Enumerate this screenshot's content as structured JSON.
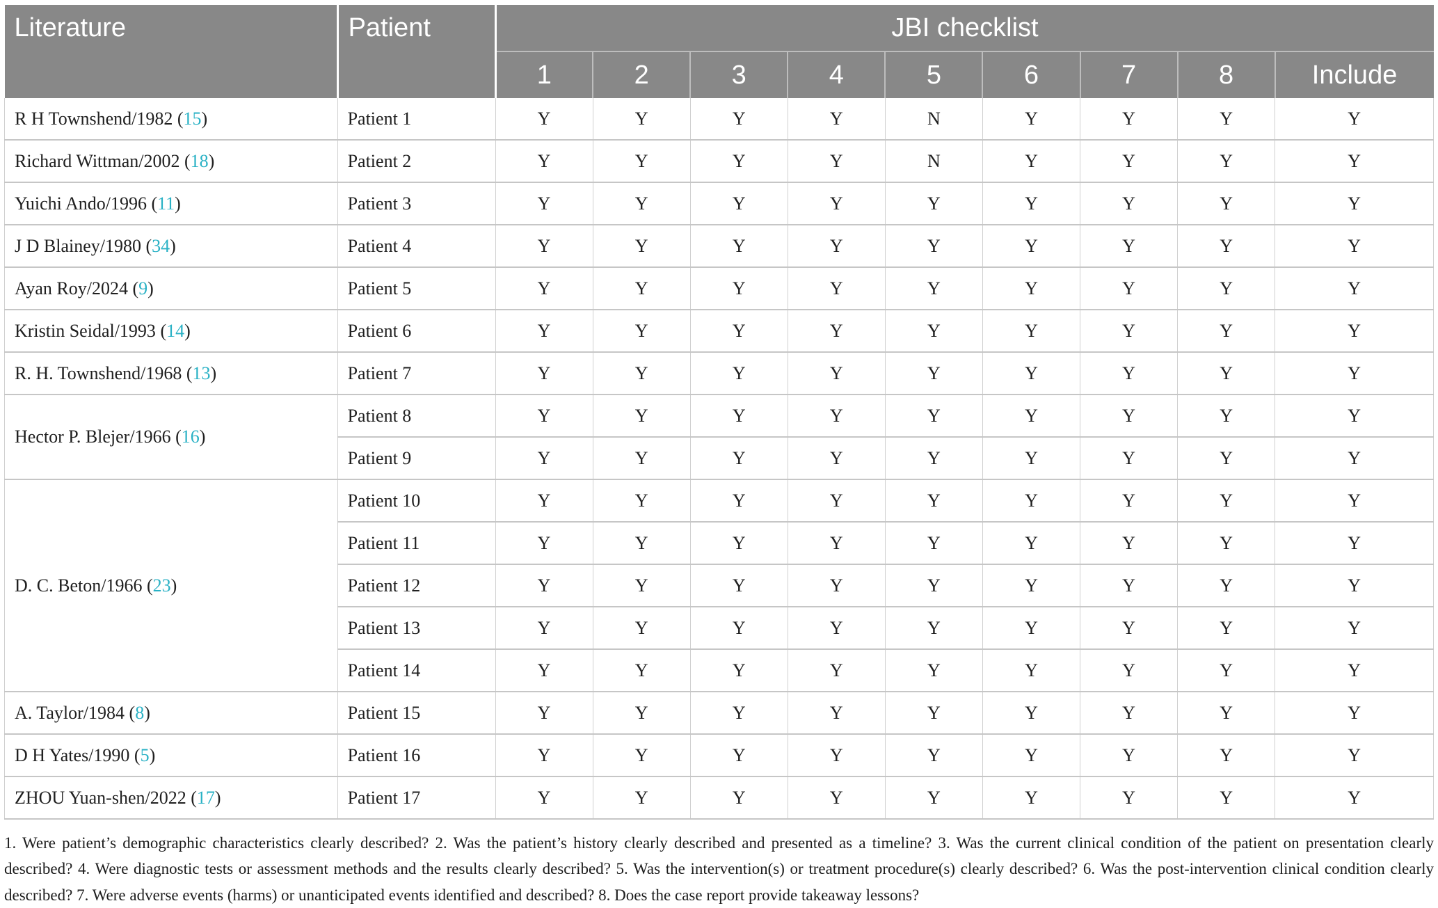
{
  "table": {
    "header": {
      "literature": "Literature",
      "patient": "Patient",
      "jbi": "JBI checklist",
      "sub_columns": [
        "1",
        "2",
        "3",
        "4",
        "5",
        "6",
        "7",
        "8",
        "Include"
      ]
    },
    "groups": [
      {
        "literature": "R H Townshend/1982",
        "ref": "15",
        "patients": [
          {
            "label": "Patient 1",
            "checks": [
              "Y",
              "Y",
              "Y",
              "Y",
              "N",
              "Y",
              "Y",
              "Y"
            ],
            "include": "Y"
          }
        ]
      },
      {
        "literature": "Richard Wittman/2002",
        "ref": "18",
        "patients": [
          {
            "label": "Patient 2",
            "checks": [
              "Y",
              "Y",
              "Y",
              "Y",
              "N",
              "Y",
              "Y",
              "Y"
            ],
            "include": "Y"
          }
        ]
      },
      {
        "literature": "Yuichi Ando/1996",
        "ref": "11",
        "patients": [
          {
            "label": "Patient 3",
            "checks": [
              "Y",
              "Y",
              "Y",
              "Y",
              "Y",
              "Y",
              "Y",
              "Y"
            ],
            "include": "Y"
          }
        ]
      },
      {
        "literature": "J D Blainey/1980",
        "ref": "34",
        "patients": [
          {
            "label": "Patient 4",
            "checks": [
              "Y",
              "Y",
              "Y",
              "Y",
              "Y",
              "Y",
              "Y",
              "Y"
            ],
            "include": "Y"
          }
        ]
      },
      {
        "literature": "Ayan Roy/2024",
        "ref": "9",
        "patients": [
          {
            "label": "Patient 5",
            "checks": [
              "Y",
              "Y",
              "Y",
              "Y",
              "Y",
              "Y",
              "Y",
              "Y"
            ],
            "include": "Y"
          }
        ]
      },
      {
        "literature": "Kristin Seidal/1993",
        "ref": "14",
        "patients": [
          {
            "label": "Patient 6",
            "checks": [
              "Y",
              "Y",
              "Y",
              "Y",
              "Y",
              "Y",
              "Y",
              "Y"
            ],
            "include": "Y"
          }
        ]
      },
      {
        "literature": "R. H. Townshend/1968",
        "ref": "13",
        "patients": [
          {
            "label": "Patient 7",
            "checks": [
              "Y",
              "Y",
              "Y",
              "Y",
              "Y",
              "Y",
              "Y",
              "Y"
            ],
            "include": "Y"
          }
        ]
      },
      {
        "literature": "Hector P. Blejer/1966",
        "ref": "16",
        "patients": [
          {
            "label": "Patient 8",
            "checks": [
              "Y",
              "Y",
              "Y",
              "Y",
              "Y",
              "Y",
              "Y",
              "Y"
            ],
            "include": "Y"
          },
          {
            "label": "Patient 9",
            "checks": [
              "Y",
              "Y",
              "Y",
              "Y",
              "Y",
              "Y",
              "Y",
              "Y"
            ],
            "include": "Y"
          }
        ]
      },
      {
        "literature": "D. C. Beton/1966",
        "ref": "23",
        "patients": [
          {
            "label": "Patient 10",
            "checks": [
              "Y",
              "Y",
              "Y",
              "Y",
              "Y",
              "Y",
              "Y",
              "Y"
            ],
            "include": "Y"
          },
          {
            "label": "Patient 11",
            "checks": [
              "Y",
              "Y",
              "Y",
              "Y",
              "Y",
              "Y",
              "Y",
              "Y"
            ],
            "include": "Y"
          },
          {
            "label": "Patient 12",
            "checks": [
              "Y",
              "Y",
              "Y",
              "Y",
              "Y",
              "Y",
              "Y",
              "Y"
            ],
            "include": "Y"
          },
          {
            "label": "Patient 13",
            "checks": [
              "Y",
              "Y",
              "Y",
              "Y",
              "Y",
              "Y",
              "Y",
              "Y"
            ],
            "include": "Y"
          },
          {
            "label": "Patient 14",
            "checks": [
              "Y",
              "Y",
              "Y",
              "Y",
              "Y",
              "Y",
              "Y",
              "Y"
            ],
            "include": "Y"
          }
        ]
      },
      {
        "literature": "A. Taylor/1984",
        "ref": "8",
        "patients": [
          {
            "label": "Patient 15",
            "checks": [
              "Y",
              "Y",
              "Y",
              "Y",
              "Y",
              "Y",
              "Y",
              "Y"
            ],
            "include": "Y"
          }
        ]
      },
      {
        "literature": "D H Yates/1990",
        "ref": "5",
        "patients": [
          {
            "label": "Patient 16",
            "checks": [
              "Y",
              "Y",
              "Y",
              "Y",
              "Y",
              "Y",
              "Y",
              "Y"
            ],
            "include": "Y"
          }
        ]
      },
      {
        "literature": "ZHOU Yuan-shen/2022",
        "ref": "17",
        "patients": [
          {
            "label": "Patient 17",
            "checks": [
              "Y",
              "Y",
              "Y",
              "Y",
              "Y",
              "Y",
              "Y",
              "Y"
            ],
            "include": "Y"
          }
        ]
      }
    ],
    "footnote": "1. Were patient’s demographic characteristics clearly described? 2. Was the patient’s history clearly described and presented as a timeline? 3. Was the current clinical condition of the patient on presentation clearly described? 4. Were diagnostic tests or assessment methods and the results clearly described? 5. Was the intervention(s) or treatment procedure(s) clearly described? 6. Was the post-intervention clinical condition clearly described? 7. Were adverse events (harms) or unanticipated events identified and described? 8. Does the case report provide takeaway lessons?"
  },
  "colors": {
    "header_bg": "#888888",
    "header_text": "#ffffff",
    "citation": "#29b1c5",
    "body_text": "#202020",
    "border": "#c9c9c9"
  }
}
